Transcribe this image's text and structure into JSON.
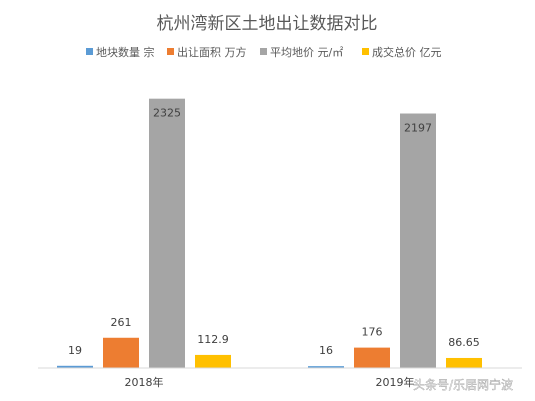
{
  "chart_data": {
    "type": "bar",
    "title": "杭州湾新区土地出让数据对比",
    "categories": [
      "2018年",
      "2019年"
    ],
    "series": [
      {
        "name": "地块数量 宗",
        "color": "#5b9bd5",
        "values": [
          19,
          16
        ],
        "labels": [
          "19",
          "16"
        ]
      },
      {
        "name": "出让面积 万方",
        "color": "#ed7d31",
        "values": [
          261,
          176
        ],
        "labels": [
          "261",
          "176"
        ]
      },
      {
        "name": "平均地价 元/㎡",
        "color": "#a5a5a5",
        "values": [
          2325,
          2197
        ],
        "labels": [
          "2325",
          "2197"
        ]
      },
      {
        "name": "成交总价 亿元",
        "color": "#ffc000",
        "values": [
          112.9,
          86.65
        ],
        "labels": [
          "112.9",
          "86.65"
        ]
      }
    ],
    "ylim": [
      0,
      2400
    ],
    "legend": "top",
    "grid": false
  },
  "watermark": "头条号/乐居网宁波"
}
